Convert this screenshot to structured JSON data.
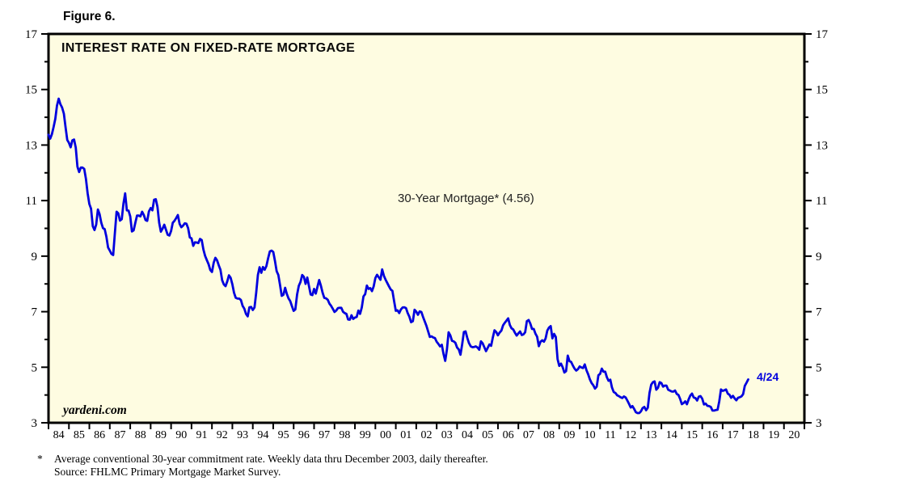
{
  "figure_label": "Figure 6.",
  "chart": {
    "title": "INTEREST RATE ON FIXED-RATE MORTGAGE",
    "series_annotation": "30-Year Mortgage* (4.56)",
    "watermark": "yardeni.com",
    "end_label": "4/24",
    "line_color": "#0000DE",
    "plot_bg": "#FEFCE1",
    "frame_color": "#000000"
  },
  "footnote": {
    "marker": "*",
    "line1": "Average conventional 30-year commitment rate. Weekly data thru December 2003, daily thereafter.",
    "line2": "Source: FHLMC Primary Mortgage Market Survey."
  },
  "chart_data": {
    "type": "line",
    "title": "INTEREST RATE ON FIXED-RATE MORTGAGE",
    "xlabel": "",
    "ylabel": "",
    "x_tick_labels": [
      "84",
      "85",
      "86",
      "87",
      "88",
      "89",
      "90",
      "91",
      "92",
      "93",
      "94",
      "95",
      "96",
      "97",
      "98",
      "99",
      "00",
      "01",
      "02",
      "03",
      "04",
      "05",
      "06",
      "07",
      "08",
      "09",
      "10",
      "11",
      "12",
      "13",
      "14",
      "15",
      "16",
      "17",
      "18",
      "19",
      "20"
    ],
    "x_range_years": [
      1984,
      2021
    ],
    "ylim": [
      3,
      17
    ],
    "y_ticks_major": [
      3,
      5,
      7,
      9,
      11,
      13,
      15,
      17
    ],
    "y_ticks_minor": [
      4,
      6,
      8,
      10,
      12,
      14,
      16
    ],
    "grid": false,
    "legend_position": "none",
    "series": [
      {
        "name": "30-Year Mortgage",
        "frequency": "monthly",
        "start_year": 1984,
        "last_value": 4.56,
        "last_date_label": "4/24",
        "values": [
          13.37,
          13.23,
          13.39,
          13.65,
          13.94,
          14.42,
          14.67,
          14.47,
          14.35,
          14.13,
          13.64,
          13.18,
          13.08,
          12.92,
          13.17,
          13.2,
          12.91,
          12.22,
          12.03,
          12.19,
          12.19,
          12.14,
          11.78,
          11.26,
          10.88,
          10.71,
          10.08,
          9.94,
          10.14,
          10.68,
          10.51,
          10.2,
          10.01,
          9.97,
          9.7,
          9.31,
          9.2,
          9.08,
          9.04,
          9.83,
          10.6,
          10.54,
          10.28,
          10.33,
          10.89,
          11.26,
          10.65,
          10.64,
          10.43,
          9.89,
          9.93,
          10.2,
          10.46,
          10.46,
          10.43,
          10.6,
          10.48,
          10.3,
          10.27,
          10.61,
          10.73,
          10.65,
          11.03,
          11.05,
          10.77,
          10.2,
          9.88,
          9.99,
          10.13,
          9.95,
          9.77,
          9.74,
          9.9,
          10.2,
          10.27,
          10.37,
          10.48,
          10.16,
          10.04,
          10.1,
          10.18,
          10.17,
          10.01,
          9.67,
          9.64,
          9.37,
          9.5,
          9.49,
          9.47,
          9.62,
          9.58,
          9.24,
          9.01,
          8.86,
          8.71,
          8.5,
          8.43,
          8.76,
          8.94,
          8.85,
          8.67,
          8.51,
          8.13,
          7.98,
          7.92,
          8.09,
          8.31,
          8.22,
          7.99,
          7.68,
          7.5,
          7.47,
          7.47,
          7.42,
          7.21,
          7.11,
          6.92,
          6.83,
          7.16,
          7.17,
          7.06,
          7.15,
          7.68,
          8.32,
          8.6,
          8.4,
          8.61,
          8.51,
          8.64,
          8.93,
          9.17,
          9.2,
          9.15,
          8.83,
          8.46,
          8.32,
          7.96,
          7.57,
          7.61,
          7.86,
          7.64,
          7.48,
          7.38,
          7.2,
          7.03,
          7.08,
          7.62,
          7.93,
          8.07,
          8.32,
          8.25,
          8.0,
          8.23,
          7.92,
          7.62,
          7.6,
          7.82,
          7.65,
          7.9,
          8.14,
          7.94,
          7.69,
          7.5,
          7.48,
          7.43,
          7.29,
          7.21,
          7.1,
          6.99,
          7.04,
          7.13,
          7.14,
          7.14,
          7.0,
          6.95,
          6.92,
          6.72,
          6.71,
          6.87,
          6.74,
          6.79,
          6.81,
          7.04,
          6.92,
          7.15,
          7.55,
          7.63,
          7.94,
          7.82,
          7.85,
          7.74,
          7.91,
          8.21,
          8.33,
          8.24,
          8.15,
          8.52,
          8.29,
          8.15,
          8.03,
          7.91,
          7.8,
          7.75,
          7.38,
          7.03,
          7.05,
          6.95,
          7.08,
          7.15,
          7.16,
          7.13,
          6.95,
          6.82,
          6.62,
          6.66,
          7.07,
          7.0,
          6.89,
          7.01,
          6.99,
          6.81,
          6.65,
          6.49,
          6.29,
          6.09,
          6.11,
          6.07,
          6.05,
          5.92,
          5.84,
          5.75,
          5.81,
          5.48,
          5.23,
          5.63,
          6.26,
          6.15,
          5.95,
          5.93,
          5.88,
          5.71,
          5.64,
          5.45,
          5.83,
          6.27,
          6.29,
          6.06,
          5.87,
          5.75,
          5.72,
          5.73,
          5.75,
          5.71,
          5.63,
          5.93,
          5.86,
          5.72,
          5.58,
          5.7,
          5.82,
          5.77,
          6.07,
          6.33,
          6.27,
          6.15,
          6.25,
          6.32,
          6.51,
          6.6,
          6.68,
          6.76,
          6.52,
          6.4,
          6.36,
          6.24,
          6.14,
          6.22,
          6.29,
          6.16,
          6.18,
          6.26,
          6.66,
          6.7,
          6.57,
          6.38,
          6.38,
          6.21,
          6.1,
          5.76,
          5.92,
          5.97,
          5.92,
          6.04,
          6.32,
          6.43,
          6.48,
          6.04,
          6.2,
          6.09,
          5.29,
          5.05,
          5.13,
          5.0,
          4.81,
          4.86,
          5.42,
          5.22,
          5.19,
          5.06,
          4.95,
          4.88,
          4.93,
          5.03,
          4.99,
          4.97,
          5.1,
          4.89,
          4.74,
          4.56,
          4.43,
          4.35,
          4.23,
          4.3,
          4.71,
          4.76,
          4.95,
          4.84,
          4.84,
          4.64,
          4.51,
          4.55,
          4.27,
          4.11,
          4.07,
          3.99,
          3.96,
          3.92,
          3.89,
          3.95,
          3.91,
          3.8,
          3.68,
          3.55,
          3.6,
          3.5,
          3.38,
          3.35,
          3.35,
          3.41,
          3.53,
          3.57,
          3.45,
          3.54,
          4.07,
          4.37,
          4.46,
          4.49,
          4.19,
          4.26,
          4.46,
          4.43,
          4.3,
          4.34,
          4.34,
          4.19,
          4.16,
          4.13,
          4.12,
          4.16,
          4.04,
          4.0,
          3.86,
          3.67,
          3.71,
          3.77,
          3.67,
          3.84,
          3.98,
          4.05,
          3.91,
          3.89,
          3.8,
          3.94,
          3.96,
          3.87,
          3.66,
          3.69,
          3.61,
          3.6,
          3.57,
          3.44,
          3.44,
          3.46,
          3.47,
          3.77,
          4.2,
          4.15,
          4.17,
          4.2,
          4.05,
          4.01,
          3.9,
          3.97,
          3.88,
          3.81,
          3.9,
          3.92,
          3.95,
          4.03,
          4.33,
          4.44,
          4.56
        ]
      }
    ]
  }
}
